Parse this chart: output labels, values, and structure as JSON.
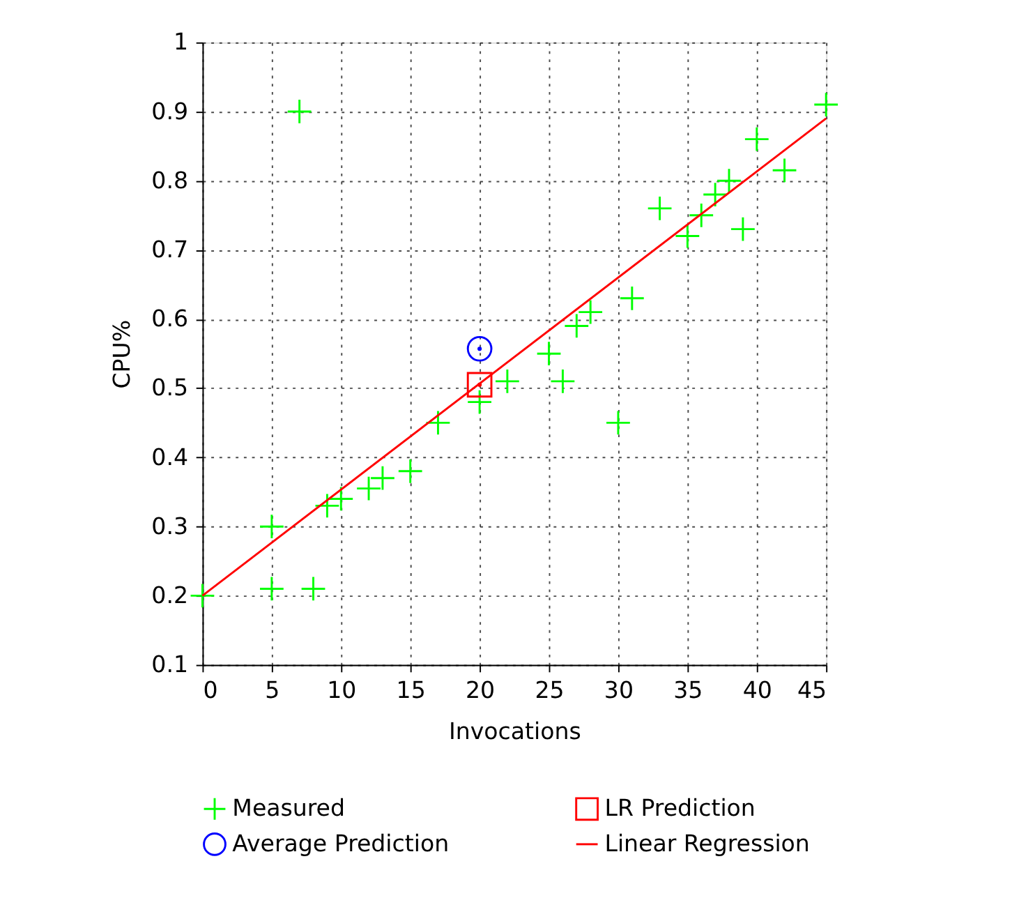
{
  "chart_data": {
    "type": "scatter",
    "xlabel": "Invocations",
    "ylabel": "CPU%",
    "xlim": [
      0,
      45
    ],
    "xticks": [
      0,
      5,
      10,
      15,
      20,
      25,
      30,
      35,
      40,
      45
    ],
    "ylim": [
      0.1,
      1
    ],
    "yticks": [
      0.1,
      0.2,
      0.3,
      0.4,
      0.5,
      0.6,
      0.7,
      0.8,
      0.9,
      {
        "value": 1,
        "label": "1"
      }
    ],
    "grid": true,
    "legend": "bottom",
    "series": [
      {
        "name": "Measured",
        "marker": "cross",
        "color": "#00ff00",
        "x": [
          0,
          5,
          5,
          7,
          8,
          9,
          10,
          12,
          13,
          15,
          17,
          20,
          22,
          25,
          26,
          27,
          28,
          30,
          31,
          33,
          35,
          36,
          37,
          38,
          39,
          40,
          42,
          45
        ],
        "values": [
          0.2,
          0.3,
          0.21,
          0.9,
          0.21,
          0.33,
          0.34,
          0.355,
          0.37,
          0.38,
          0.45,
          0.48,
          0.51,
          0.55,
          0.51,
          0.59,
          0.61,
          0.45,
          0.63,
          0.76,
          0.72,
          0.75,
          0.78,
          0.8,
          0.73,
          0.86,
          0.815,
          0.91
        ]
      },
      {
        "name": "LR Prediction",
        "marker": "square",
        "color": "#ff0000",
        "x": [
          20
        ],
        "values": [
          0.505
        ]
      },
      {
        "name": "Average Prediction",
        "marker": "circle",
        "color": "#0000ff",
        "x": [
          20
        ],
        "values": [
          0.557
        ]
      },
      {
        "name": "Linear Regression",
        "type": "line",
        "line_style": "solid",
        "color": "#ff0000",
        "x": [
          0,
          45
        ],
        "values": [
          0.2,
          0.89
        ]
      }
    ]
  }
}
